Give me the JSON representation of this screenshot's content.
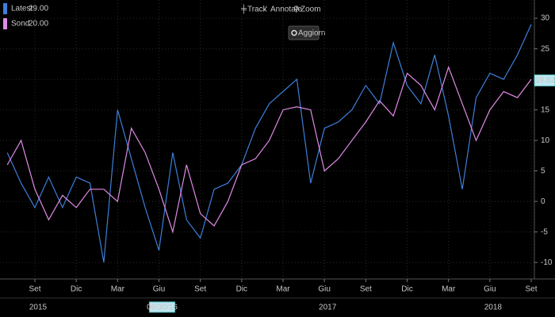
{
  "chart_data": {
    "type": "line",
    "toolbar": [
      "Track",
      "Annotate",
      "Zoom"
    ],
    "button": "Aggiorn",
    "categories": [
      null,
      null,
      "Set",
      null,
      null,
      "Dic",
      null,
      null,
      "Mar",
      null,
      null,
      "Giu",
      null,
      null,
      "Set",
      null,
      null,
      "Dic",
      null,
      null,
      "Mar",
      null,
      null,
      "Giu",
      null,
      null,
      "Set",
      null,
      null,
      "Dic",
      null,
      null,
      "Mar",
      null,
      null,
      "Giu",
      null,
      null,
      "Set"
    ],
    "year_row": [
      null,
      null,
      "2015",
      null,
      null,
      null,
      null,
      null,
      null,
      null,
      null,
      "06/30/16",
      null,
      null,
      null,
      null,
      null,
      null,
      null,
      null,
      null,
      null,
      null,
      "2017",
      null,
      null,
      null,
      null,
      null,
      null,
      null,
      null,
      null,
      null,
      null,
      "2018",
      null,
      null,
      null
    ],
    "series": [
      {
        "name": "Latest",
        "legend_value": "29.00",
        "color": "#3d7fd9",
        "values": [
          8,
          3,
          -1,
          4,
          -1,
          4,
          3,
          -10,
          15,
          7,
          -1,
          -8,
          8,
          -3,
          -6,
          2,
          3,
          6,
          12,
          16,
          18,
          20,
          3,
          12,
          13,
          15,
          19,
          16,
          26,
          19,
          16,
          24,
          14,
          2,
          17,
          21,
          20,
          24,
          29
        ]
      },
      {
        "name": "Sond",
        "legend_value": "20.00",
        "color": "#e08be6",
        "values": [
          6,
          10,
          2,
          -3,
          1,
          -1,
          2,
          2,
          0,
          12,
          8,
          2,
          -5,
          6,
          -2,
          -4,
          0,
          6,
          7,
          10,
          15,
          15.5,
          15,
          5,
          7,
          10,
          13,
          16.5,
          14,
          21,
          19,
          15,
          22,
          16,
          10,
          15,
          18,
          17,
          20
        ]
      }
    ],
    "cursor_value": 19.8225,
    "ylim": [
      -12.7,
      33
    ],
    "yticks": [
      -10,
      -5,
      0,
      5,
      10,
      15,
      20,
      25,
      30
    ],
    "grid": true
  }
}
